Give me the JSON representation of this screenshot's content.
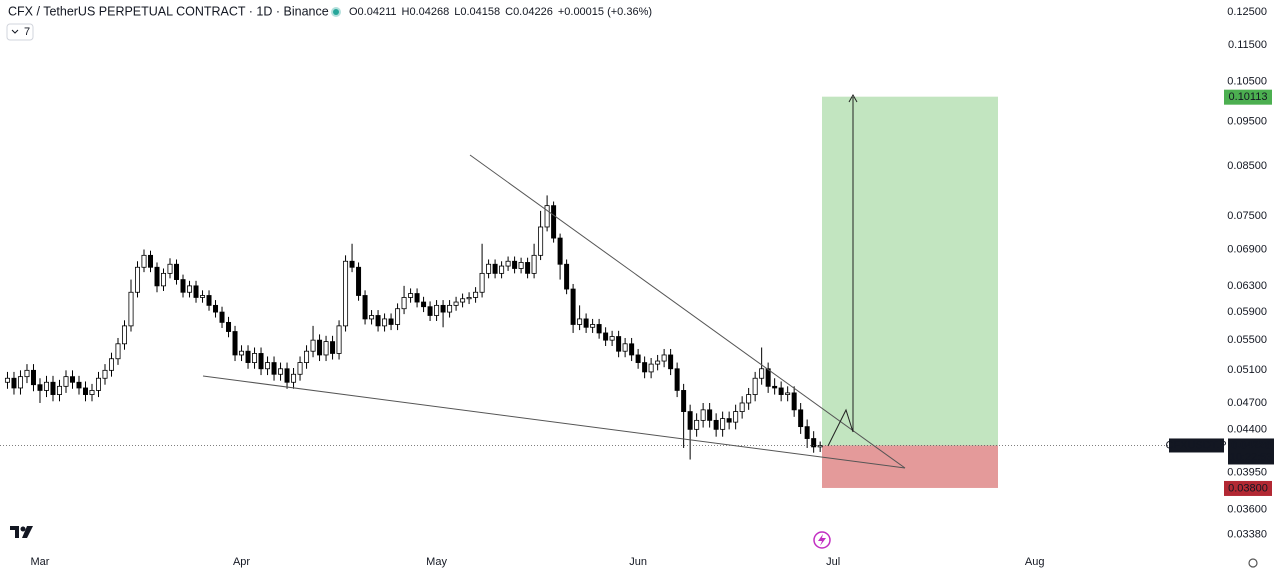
{
  "chart_data": {
    "type": "candlestick",
    "title": "CFX / TetherUS PERPETUAL CONTRACT · 1D · Binance",
    "legend_values": [
      "O0.04211",
      "H0.04268",
      "L0.04158",
      "C0.04226",
      "+0.00015 (+0.36%)"
    ],
    "indicator_count": 7,
    "log": true,
    "up_color": "#ffffff",
    "down_color": "#000000",
    "ylim": [
      0.0327,
      0.1288
    ],
    "yticks": [
      {
        "value": 0.125,
        "label": "0.12500"
      },
      {
        "value": 0.115,
        "label": "0.11500"
      },
      {
        "value": 0.105,
        "label": "0.10500"
      },
      {
        "value": 0.095,
        "label": "0.09500"
      },
      {
        "value": 0.085,
        "label": "0.08500"
      },
      {
        "value": 0.075,
        "label": "0.07500"
      },
      {
        "value": 0.069,
        "label": "0.06900"
      },
      {
        "value": 0.063,
        "label": "0.06300"
      },
      {
        "value": 0.059,
        "label": "0.05900"
      },
      {
        "value": 0.055,
        "label": "0.05500"
      },
      {
        "value": 0.051,
        "label": "0.05100"
      },
      {
        "value": 0.047,
        "label": "0.04700"
      },
      {
        "value": 0.044,
        "label": "0.04400"
      },
      {
        "value": 0.0395,
        "label": "0.03950"
      },
      {
        "value": 0.036,
        "label": "0.03600"
      },
      {
        "value": 0.0338,
        "label": "0.03380"
      }
    ],
    "xlim": [
      -6.15,
      181.5
    ],
    "xticks": [
      {
        "value": 0,
        "label": "Mar"
      },
      {
        "value": 31,
        "label": "Apr"
      },
      {
        "value": 61,
        "label": "May"
      },
      {
        "value": 92,
        "label": "Jun"
      },
      {
        "value": 122,
        "label": "Jul"
      },
      {
        "value": 153,
        "label": "Aug"
      }
    ],
    "x": [
      -5,
      -4,
      -3,
      -2,
      -1,
      0,
      1,
      2,
      3,
      4,
      5,
      6,
      7,
      8,
      9,
      10,
      11,
      12,
      13,
      14,
      15,
      16,
      17,
      18,
      19,
      20,
      21,
      22,
      23,
      24,
      25,
      26,
      27,
      28,
      29,
      30,
      31,
      32,
      33,
      34,
      35,
      36,
      37,
      38,
      39,
      40,
      41,
      42,
      43,
      44,
      45,
      46,
      47,
      48,
      49,
      50,
      51,
      52,
      53,
      54,
      55,
      56,
      57,
      58,
      59,
      60,
      61,
      62,
      63,
      64,
      65,
      66,
      67,
      68,
      69,
      70,
      71,
      72,
      73,
      74,
      75,
      76,
      77,
      78,
      79,
      80,
      81,
      82,
      83,
      84,
      85,
      86,
      87,
      88,
      89,
      90,
      91,
      92,
      93,
      94,
      95,
      96,
      97,
      98,
      99,
      100,
      101,
      102,
      103,
      104,
      105,
      106,
      107,
      108,
      109,
      110,
      111,
      112,
      113,
      114,
      115,
      116,
      117,
      118,
      119,
      120
    ],
    "open": [
      0.0495,
      0.05,
      0.0488,
      0.0502,
      0.051,
      0.0492,
      0.0485,
      0.0495,
      0.048,
      0.049,
      0.0502,
      0.0495,
      0.0488,
      0.048,
      0.0485,
      0.05,
      0.051,
      0.0525,
      0.0545,
      0.057,
      0.062,
      0.066,
      0.068,
      0.066,
      0.063,
      0.065,
      0.0665,
      0.064,
      0.062,
      0.063,
      0.0612,
      0.0615,
      0.06,
      0.059,
      0.0575,
      0.0562,
      0.053,
      0.0535,
      0.052,
      0.0532,
      0.0512,
      0.052,
      0.0505,
      0.0512,
      0.0495,
      0.0505,
      0.052,
      0.0535,
      0.055,
      0.053,
      0.0548,
      0.0532,
      0.057,
      0.067,
      0.066,
      0.0615,
      0.058,
      0.0585,
      0.057,
      0.058,
      0.0572,
      0.0595,
      0.0612,
      0.0618,
      0.0605,
      0.0598,
      0.0585,
      0.06,
      0.059,
      0.06,
      0.0605,
      0.061,
      0.0612,
      0.062,
      0.065,
      0.0665,
      0.065,
      0.0662,
      0.067,
      0.0658,
      0.0668,
      0.065,
      0.068,
      0.073,
      0.077,
      0.071,
      0.0665,
      0.0625,
      0.0572,
      0.058,
      0.0568,
      0.0572,
      0.056,
      0.055,
      0.0555,
      0.0535,
      0.0545,
      0.053,
      0.052,
      0.0508,
      0.0518,
      0.0522,
      0.053,
      0.0512,
      0.0485,
      0.046,
      0.044,
      0.045,
      0.0462,
      0.045,
      0.044,
      0.0452,
      0.0448,
      0.046,
      0.047,
      0.048,
      0.05,
      0.0512,
      0.049,
      0.0488,
      0.048,
      0.0482,
      0.0462,
      0.0443,
      0.043,
      0.04211
    ],
    "high": [
      0.0508,
      0.0508,
      0.051,
      0.0518,
      0.0518,
      0.05,
      0.0503,
      0.0503,
      0.0498,
      0.051,
      0.051,
      0.0503,
      0.0496,
      0.0493,
      0.0508,
      0.0518,
      0.0533,
      0.0553,
      0.0578,
      0.064,
      0.067,
      0.069,
      0.0688,
      0.0668,
      0.0658,
      0.0675,
      0.0673,
      0.0648,
      0.0638,
      0.0638,
      0.0623,
      0.0623,
      0.0608,
      0.0598,
      0.0583,
      0.057,
      0.0543,
      0.0543,
      0.054,
      0.054,
      0.0528,
      0.0528,
      0.052,
      0.052,
      0.0513,
      0.0528,
      0.0543,
      0.057,
      0.0558,
      0.0556,
      0.0556,
      0.0578,
      0.068,
      0.07,
      0.0668,
      0.0623,
      0.0593,
      0.0593,
      0.0588,
      0.0588,
      0.0603,
      0.063,
      0.0626,
      0.0626,
      0.0613,
      0.0606,
      0.0608,
      0.0608,
      0.0608,
      0.0613,
      0.0618,
      0.062,
      0.0628,
      0.07,
      0.0673,
      0.0673,
      0.067,
      0.0678,
      0.0678,
      0.0676,
      0.0676,
      0.07,
      0.076,
      0.079,
      0.0778,
      0.0718,
      0.0673,
      0.0633,
      0.06,
      0.0588,
      0.058,
      0.058,
      0.0568,
      0.0563,
      0.0563,
      0.0553,
      0.0553,
      0.0538,
      0.0528,
      0.0526,
      0.053,
      0.0538,
      0.0538,
      0.052,
      0.0493,
      0.0468,
      0.0458,
      0.047,
      0.047,
      0.0458,
      0.046,
      0.046,
      0.0468,
      0.0478,
      0.0488,
      0.0508,
      0.054,
      0.052,
      0.05,
      0.0496,
      0.049,
      0.049,
      0.047,
      0.0451,
      0.0438,
      0.04268
    ],
    "low": [
      0.0487,
      0.048,
      0.048,
      0.0494,
      0.0484,
      0.047,
      0.0477,
      0.0472,
      0.0472,
      0.0482,
      0.0487,
      0.048,
      0.0472,
      0.0472,
      0.0477,
      0.0492,
      0.0502,
      0.0517,
      0.0537,
      0.0562,
      0.0612,
      0.0652,
      0.0652,
      0.062,
      0.0622,
      0.0642,
      0.0632,
      0.0612,
      0.0612,
      0.0604,
      0.0604,
      0.0592,
      0.0582,
      0.0567,
      0.0554,
      0.0522,
      0.0522,
      0.0512,
      0.0512,
      0.0504,
      0.0504,
      0.0497,
      0.0497,
      0.0487,
      0.0487,
      0.0497,
      0.0512,
      0.0527,
      0.0522,
      0.0522,
      0.0524,
      0.0524,
      0.0562,
      0.0652,
      0.0607,
      0.0572,
      0.0572,
      0.0562,
      0.0562,
      0.0564,
      0.0564,
      0.0587,
      0.0604,
      0.0597,
      0.059,
      0.0577,
      0.0577,
      0.0568,
      0.0582,
      0.0592,
      0.0597,
      0.0602,
      0.0604,
      0.0612,
      0.0642,
      0.0642,
      0.0642,
      0.0654,
      0.065,
      0.065,
      0.0642,
      0.0642,
      0.0672,
      0.0722,
      0.0702,
      0.064,
      0.0617,
      0.056,
      0.0564,
      0.056,
      0.056,
      0.0552,
      0.0542,
      0.0542,
      0.0527,
      0.0527,
      0.0522,
      0.0512,
      0.05,
      0.05,
      0.051,
      0.0514,
      0.0504,
      0.0477,
      0.042,
      0.0408,
      0.0432,
      0.0442,
      0.0442,
      0.0432,
      0.0432,
      0.044,
      0.044,
      0.0452,
      0.0462,
      0.0472,
      0.0492,
      0.0482,
      0.048,
      0.0472,
      0.0472,
      0.0454,
      0.0435,
      0.042,
      0.0415,
      0.04158
    ],
    "close": [
      0.05,
      0.0488,
      0.0502,
      0.051,
      0.0492,
      0.0485,
      0.0495,
      0.048,
      0.049,
      0.0502,
      0.0495,
      0.0488,
      0.048,
      0.0485,
      0.05,
      0.051,
      0.0525,
      0.0545,
      0.057,
      0.062,
      0.066,
      0.068,
      0.066,
      0.063,
      0.065,
      0.0665,
      0.064,
      0.062,
      0.063,
      0.0612,
      0.0615,
      0.06,
      0.059,
      0.0575,
      0.0562,
      0.053,
      0.0535,
      0.052,
      0.0532,
      0.0512,
      0.052,
      0.0505,
      0.0512,
      0.0495,
      0.0505,
      0.052,
      0.0535,
      0.055,
      0.053,
      0.0548,
      0.0532,
      0.057,
      0.067,
      0.066,
      0.0615,
      0.058,
      0.0585,
      0.057,
      0.058,
      0.0572,
      0.0595,
      0.0612,
      0.0618,
      0.0605,
      0.0598,
      0.0585,
      0.06,
      0.059,
      0.06,
      0.0605,
      0.061,
      0.0612,
      0.062,
      0.065,
      0.0665,
      0.065,
      0.0662,
      0.067,
      0.0658,
      0.0668,
      0.065,
      0.068,
      0.073,
      0.077,
      0.071,
      0.0665,
      0.0625,
      0.0572,
      0.058,
      0.0568,
      0.0572,
      0.056,
      0.055,
      0.0555,
      0.0535,
      0.0545,
      0.053,
      0.052,
      0.0508,
      0.0518,
      0.0522,
      0.053,
      0.0512,
      0.0485,
      0.046,
      0.044,
      0.045,
      0.0462,
      0.045,
      0.044,
      0.0452,
      0.0448,
      0.046,
      0.047,
      0.048,
      0.05,
      0.0512,
      0.049,
      0.0488,
      0.048,
      0.0482,
      0.0462,
      0.0443,
      0.043,
      0.04211,
      0.04226
    ],
    "symbol_label": "CFXUSDT.P",
    "countdown": "10:22:53",
    "position": {
      "target": 0.10113,
      "entry": 0.04226,
      "stop": {
        "value": 0.038,
        "label": "0.03800"
      },
      "target_color": "#4caf50",
      "stop_color": "#b22833",
      "profit_fill": "#c2e5c0",
      "loss_fill": "#e49a9a"
    }
  }
}
